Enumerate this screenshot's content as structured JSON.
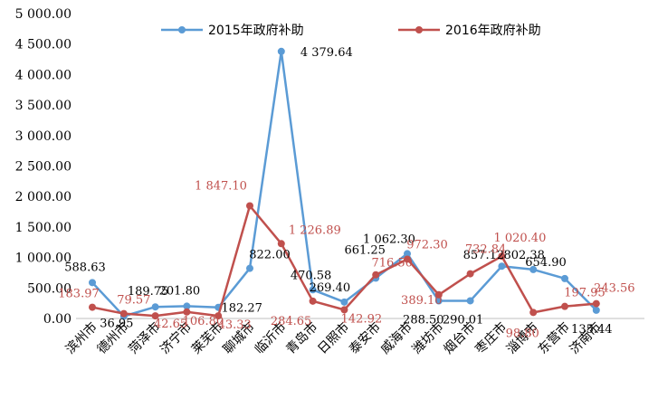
{
  "chart_data": {
    "type": "line",
    "categories": [
      "滨州市",
      "德州市",
      "菏泽市",
      "济宁市",
      "莱芜市",
      "聊城市",
      "临沂市",
      "青岛市",
      "日照市",
      "泰安市",
      "威海市",
      "潍坊市",
      "烟台市",
      "枣庄市",
      "淄博市",
      "东营市",
      "济南市"
    ],
    "series": [
      {
        "name": "2015年政府补助",
        "color": "#5b9bd5",
        "values": [
          588.63,
          36.95,
          189.75,
          201.8,
          182.27,
          822.0,
          4379.64,
          470.58,
          269.4,
          661.25,
          1062.3,
          288.5,
          290.01,
          857.12,
          802.38,
          654.9,
          135.44
        ],
        "labels": [
          "588.63",
          "36.95",
          "189.75",
          "201.80",
          "182.27",
          "822.00",
          "4 379.64",
          "470.58",
          "269.40",
          "661.25",
          "1 062.30",
          "288.50",
          "290.01",
          "857.12",
          "802.38",
          "654.90",
          "135.44"
        ]
      },
      {
        "name": "2016年政府补助",
        "color": "#c0504d",
        "values": [
          183.97,
          79.57,
          42.65,
          106.8,
          43.33,
          1847.1,
          1226.89,
          284.65,
          142.92,
          716.5,
          972.3,
          389.1,
          732.84,
          1020.4,
          98.8,
          197.95,
          243.56
        ],
        "labels": [
          "183.97",
          "79.57",
          "42.65",
          "106.80",
          "43.33",
          "1 847.10",
          "1 226.89",
          "284.65",
          "142.92",
          "716.50",
          "972.30",
          "389.10",
          "732.84",
          "1 020.40",
          "98.80",
          "197.95",
          "243.56"
        ]
      }
    ],
    "y_ticks": [
      "0.00",
      "500.00",
      "1 000.00",
      "1 500.00",
      "2 000.00",
      "2 500.00",
      "3 000.00",
      "3 500.00",
      "4 000.00",
      "4 500.00",
      "5 000.00"
    ],
    "ylim": [
      0,
      5000
    ],
    "grid": false,
    "legend_position": "top-center",
    "title": "",
    "xlabel": "",
    "ylabel": ""
  }
}
